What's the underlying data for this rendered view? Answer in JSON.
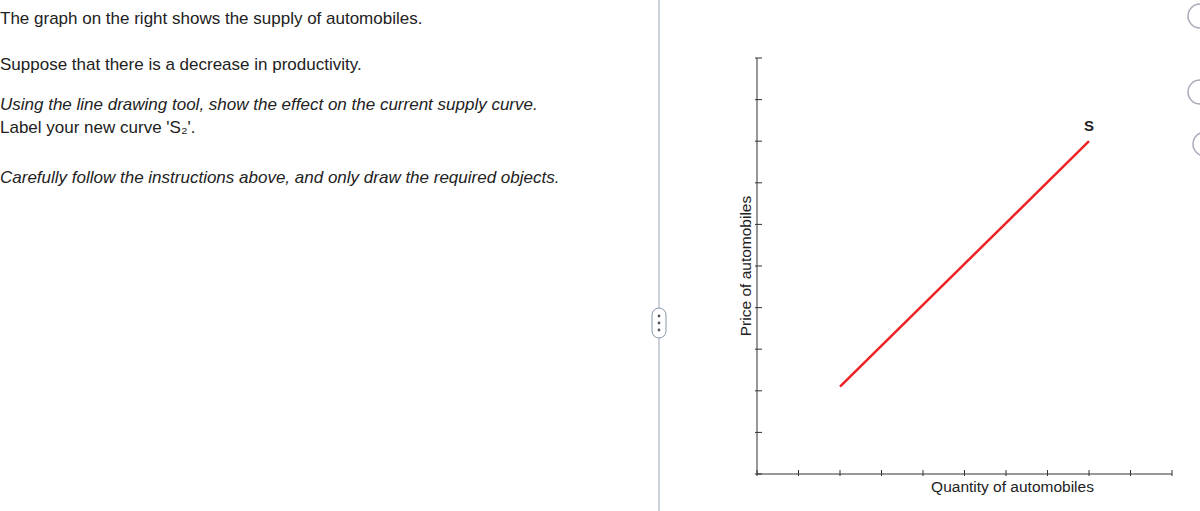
{
  "instructions": [
    "The graph on the right shows the supply of automobiles.",
    "Suppose that there is a decrease in productivity.",
    "Using the line drawing tool, show the effect on the current supply curve.",
    "Label your new curve 'S₂'.",
    "Carefully follow the instructions above, and only draw the required objects."
  ],
  "chart_data": {
    "type": "line",
    "x_label": "Quantity of automobiles",
    "y_label": "Price of automobiles",
    "x": [
      2,
      8
    ],
    "series": [
      {
        "name": "S",
        "color": "#ee2222",
        "values": [
          2.1,
          8.0
        ]
      }
    ],
    "xlim": [
      0,
      10
    ],
    "xticks": [
      0,
      1,
      2,
      3,
      4,
      5,
      6,
      7,
      8,
      9,
      10
    ],
    "ylim": [
      0,
      10
    ],
    "yticks": [
      0,
      1,
      2,
      3,
      4,
      5,
      6,
      7,
      8,
      9,
      10
    ],
    "tick_labels": false,
    "grid": false
  }
}
